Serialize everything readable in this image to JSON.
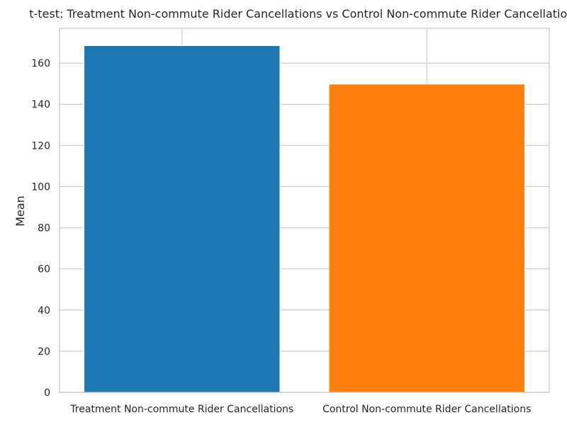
{
  "chart_data": {
    "type": "bar",
    "title": "t-test: Treatment Non-commute Rider Cancellations vs Control Non-commute Rider Cancellations",
    "xlabel": "",
    "ylabel": "Mean",
    "categories": [
      "Treatment Non-commute Rider Cancellations",
      "Control Non-commute Rider Cancellations"
    ],
    "values": [
      168.5,
      149.8
    ],
    "colors": [
      "#1f77b4",
      "#ff7f0e"
    ],
    "ylim": [
      0,
      176.9
    ],
    "yticks": [
      0,
      20,
      40,
      60,
      80,
      100,
      120,
      140,
      160
    ],
    "ytick_labels": [
      "0",
      "20",
      "40",
      "60",
      "80",
      "100",
      "120",
      "140",
      "160"
    ],
    "grid": true,
    "legend": false
  }
}
